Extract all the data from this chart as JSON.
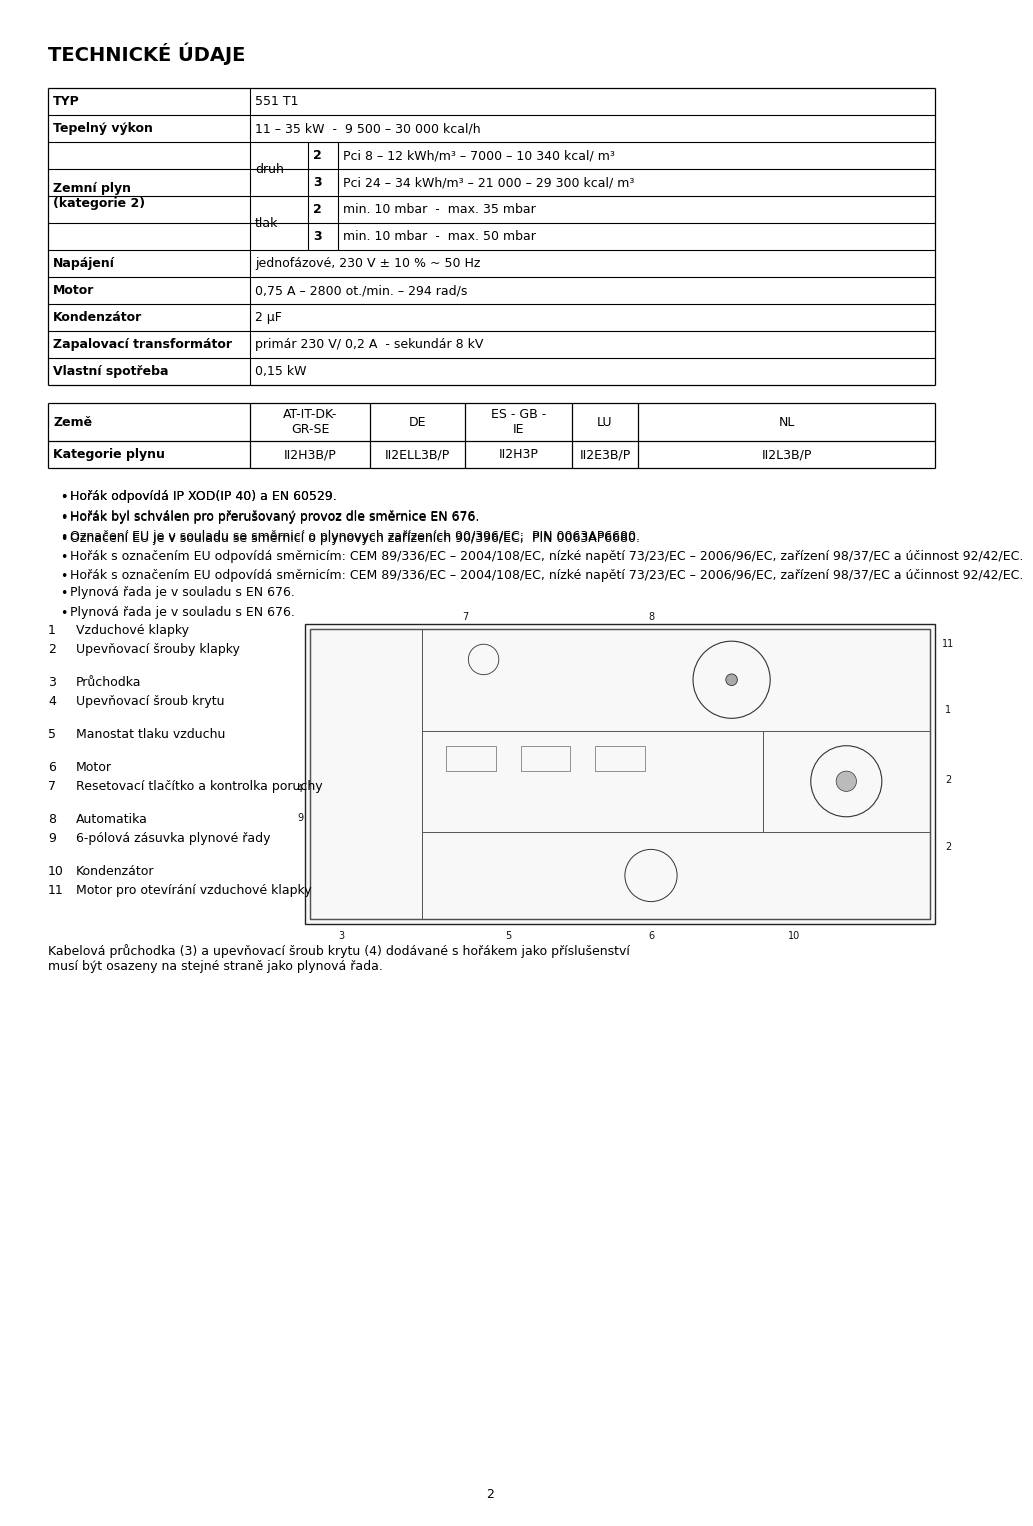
{
  "title": "TECHNICKÉ ÚDAJE",
  "row_data": [
    {
      "label": "TYP",
      "col2": "",
      "col3": "",
      "value": "551 T1",
      "bold_label": true
    },
    {
      "label": "Tepelný výkon",
      "col2": "",
      "col3": "",
      "value": "11 – 35 kW  -  9 500 – 30 000 kcal/h",
      "bold_label": true
    },
    {
      "label": "Zemní plyn\n(kategorie 2)",
      "col2": "druh",
      "col3": "2",
      "value": "Pci 8 – 12 kWh/m³ – 7000 – 10 340 kcal/ m³",
      "bold_label": true
    },
    {
      "label": "",
      "col2": "",
      "col3": "3",
      "value": "Pci 24 – 34 kWh/m³ – 21 000 – 29 300 kcal/ m³",
      "bold_label": false
    },
    {
      "label": "",
      "col2": "tlak",
      "col3": "2",
      "value": "min. 10 mbar  -  max. 35 mbar",
      "bold_label": false
    },
    {
      "label": "",
      "col2": "",
      "col3": "3",
      "value": "min. 10 mbar  -  max. 50 mbar",
      "bold_label": false
    },
    {
      "label": "Napájení",
      "col2": "",
      "col3": "",
      "value": "jednofázové, 230 V ± 10 % ~ 50 Hz",
      "bold_label": true
    },
    {
      "label": "Motor",
      "col2": "",
      "col3": "",
      "value": "0,75 A – 2800 ot./min. – 294 rad/s",
      "bold_label": true
    },
    {
      "label": "Kondenzátor",
      "col2": "",
      "col3": "",
      "value": "2 μF",
      "bold_label": true
    },
    {
      "label": "Zapalovací transformátor",
      "col2": "",
      "col3": "",
      "value": "primár 230 V/ 0,2 A  - sekundár 8 kV",
      "bold_label": true
    },
    {
      "label": "Vlastní spotřeba",
      "col2": "",
      "col3": "",
      "value": "0,15 kW",
      "bold_label": true
    }
  ],
  "table2_headers": [
    "Země",
    "AT-IT-DK-\nGR-SE",
    "DE",
    "ES - GB -\nIE",
    "LU",
    "NL"
  ],
  "table2_row": [
    "Kategorie plynu",
    "II2H3B/P",
    "II2ELL3B/P",
    "II2H3P",
    "II2E3B/P",
    "II2L3B/P"
  ],
  "bullets": [
    "Hořák odpovídá IP XOD(IP 40) a EN 60529.",
    "Hořák byl schválen pro přerušovaný provoz dle směrnice EN 676.",
    "Označení EU je v souladu se směrnicí o plynovych zařízeních 90/396/EC;  PIN 0063AP6680.",
    "Hořák s označením EU odpovídá směrnicím: CEM 89/336/EC – 2004/108/EC, nízké napětí 73/23/EC – 2006/96/EC, zařízení 98/37/EC a účinnost 92/42/EC.",
    "Plynová řada je v souladu s EN 676."
  ],
  "parts_list": [
    [
      1,
      "Vzduchové klapky"
    ],
    [
      2,
      "Upevňovací šrouby klapky"
    ],
    [
      3,
      "Průchodka"
    ],
    [
      4,
      "Upevňovací šroub krytu"
    ],
    [
      5,
      "Manostat tlaku vzduchu"
    ],
    [
      6,
      "Motor"
    ],
    [
      7,
      "Resetovací tlačítko a kontrolka poruchy"
    ],
    [
      8,
      "Automatika"
    ],
    [
      9,
      "6-pólová zásuvka plynové řady"
    ],
    [
      10,
      "Kondenzátor"
    ],
    [
      11,
      "Motor pro otevírání vzduchové klapky"
    ]
  ],
  "footnote": "Kabelová průchodka (3) a upevňovací šroub krytu (4) dodávané s hořákem jako příslušenství\nmusí být osazeny na stejné straně jako plynová řada.",
  "page_number": "2",
  "bg_color": "#ffffff",
  "text_color": "#000000",
  "lm": 38,
  "rm": 925,
  "fs_title": 14,
  "fs_body": 9,
  "fs_small": 8
}
